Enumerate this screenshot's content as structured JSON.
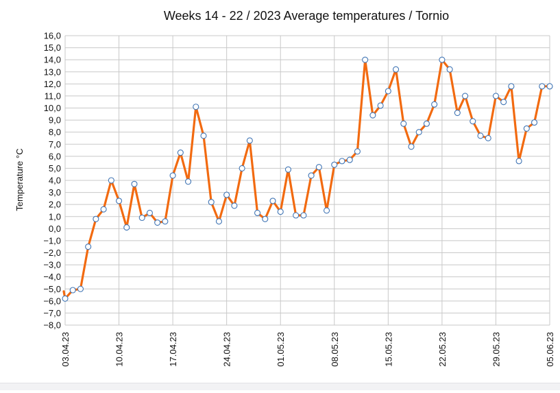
{
  "chart_data": {
    "type": "line",
    "title": "Weeks 14 - 22 / 2023  Average temperatures  / Tornio",
    "ylabel": "Temperature  °C",
    "xlabel": "",
    "ylim": [
      -8,
      16
    ],
    "ytick_step": 1,
    "ytick_labels": [
      "−8,0",
      "−7,0",
      "−6,0",
      "−5,0",
      "−4,0",
      "−3,0",
      "−2,0",
      "−1,0",
      "0,0",
      "1,0",
      "2,0",
      "3,0",
      "4,0",
      "5,0",
      "6,0",
      "7,0",
      "8,0",
      "9,0",
      "10,0",
      "11,0",
      "12,0",
      "13,0",
      "14,0",
      "15,0",
      "16,0"
    ],
    "x_start_label": "03.04.23",
    "x_tick_labels": [
      "03.04.23",
      "10.04.23",
      "17.04.23",
      "24.04.23",
      "01.05.23",
      "08.05.23",
      "15.05.23",
      "22.05.23",
      "29.05.23",
      "05.06.23"
    ],
    "x_tick_step_days": 7,
    "grid": true,
    "line_color": "#f26a10",
    "marker_fill": "#ffffff",
    "marker_stroke": "#3f74b4",
    "grid_color": "#c8c8c8",
    "lead_in_value": -5.2,
    "values": [
      -5.8,
      -5.1,
      -5.0,
      -1.5,
      0.8,
      1.6,
      4.0,
      2.3,
      0.1,
      3.7,
      0.9,
      1.3,
      0.5,
      0.6,
      4.4,
      6.3,
      3.9,
      10.1,
      7.7,
      2.2,
      0.6,
      2.8,
      1.9,
      5.0,
      7.3,
      1.3,
      0.8,
      2.3,
      1.4,
      4.9,
      1.1,
      1.1,
      4.4,
      5.1,
      1.5,
      5.3,
      5.6,
      5.7,
      6.4,
      14.0,
      9.4,
      10.2,
      11.4,
      13.2,
      8.7,
      6.8,
      8.0,
      8.7,
      10.3,
      14.0,
      13.2,
      9.6,
      11.0,
      8.9,
      7.7,
      7.5,
      11.0,
      10.5,
      11.8,
      5.6,
      8.3,
      8.8,
      11.8,
      11.8
    ]
  }
}
